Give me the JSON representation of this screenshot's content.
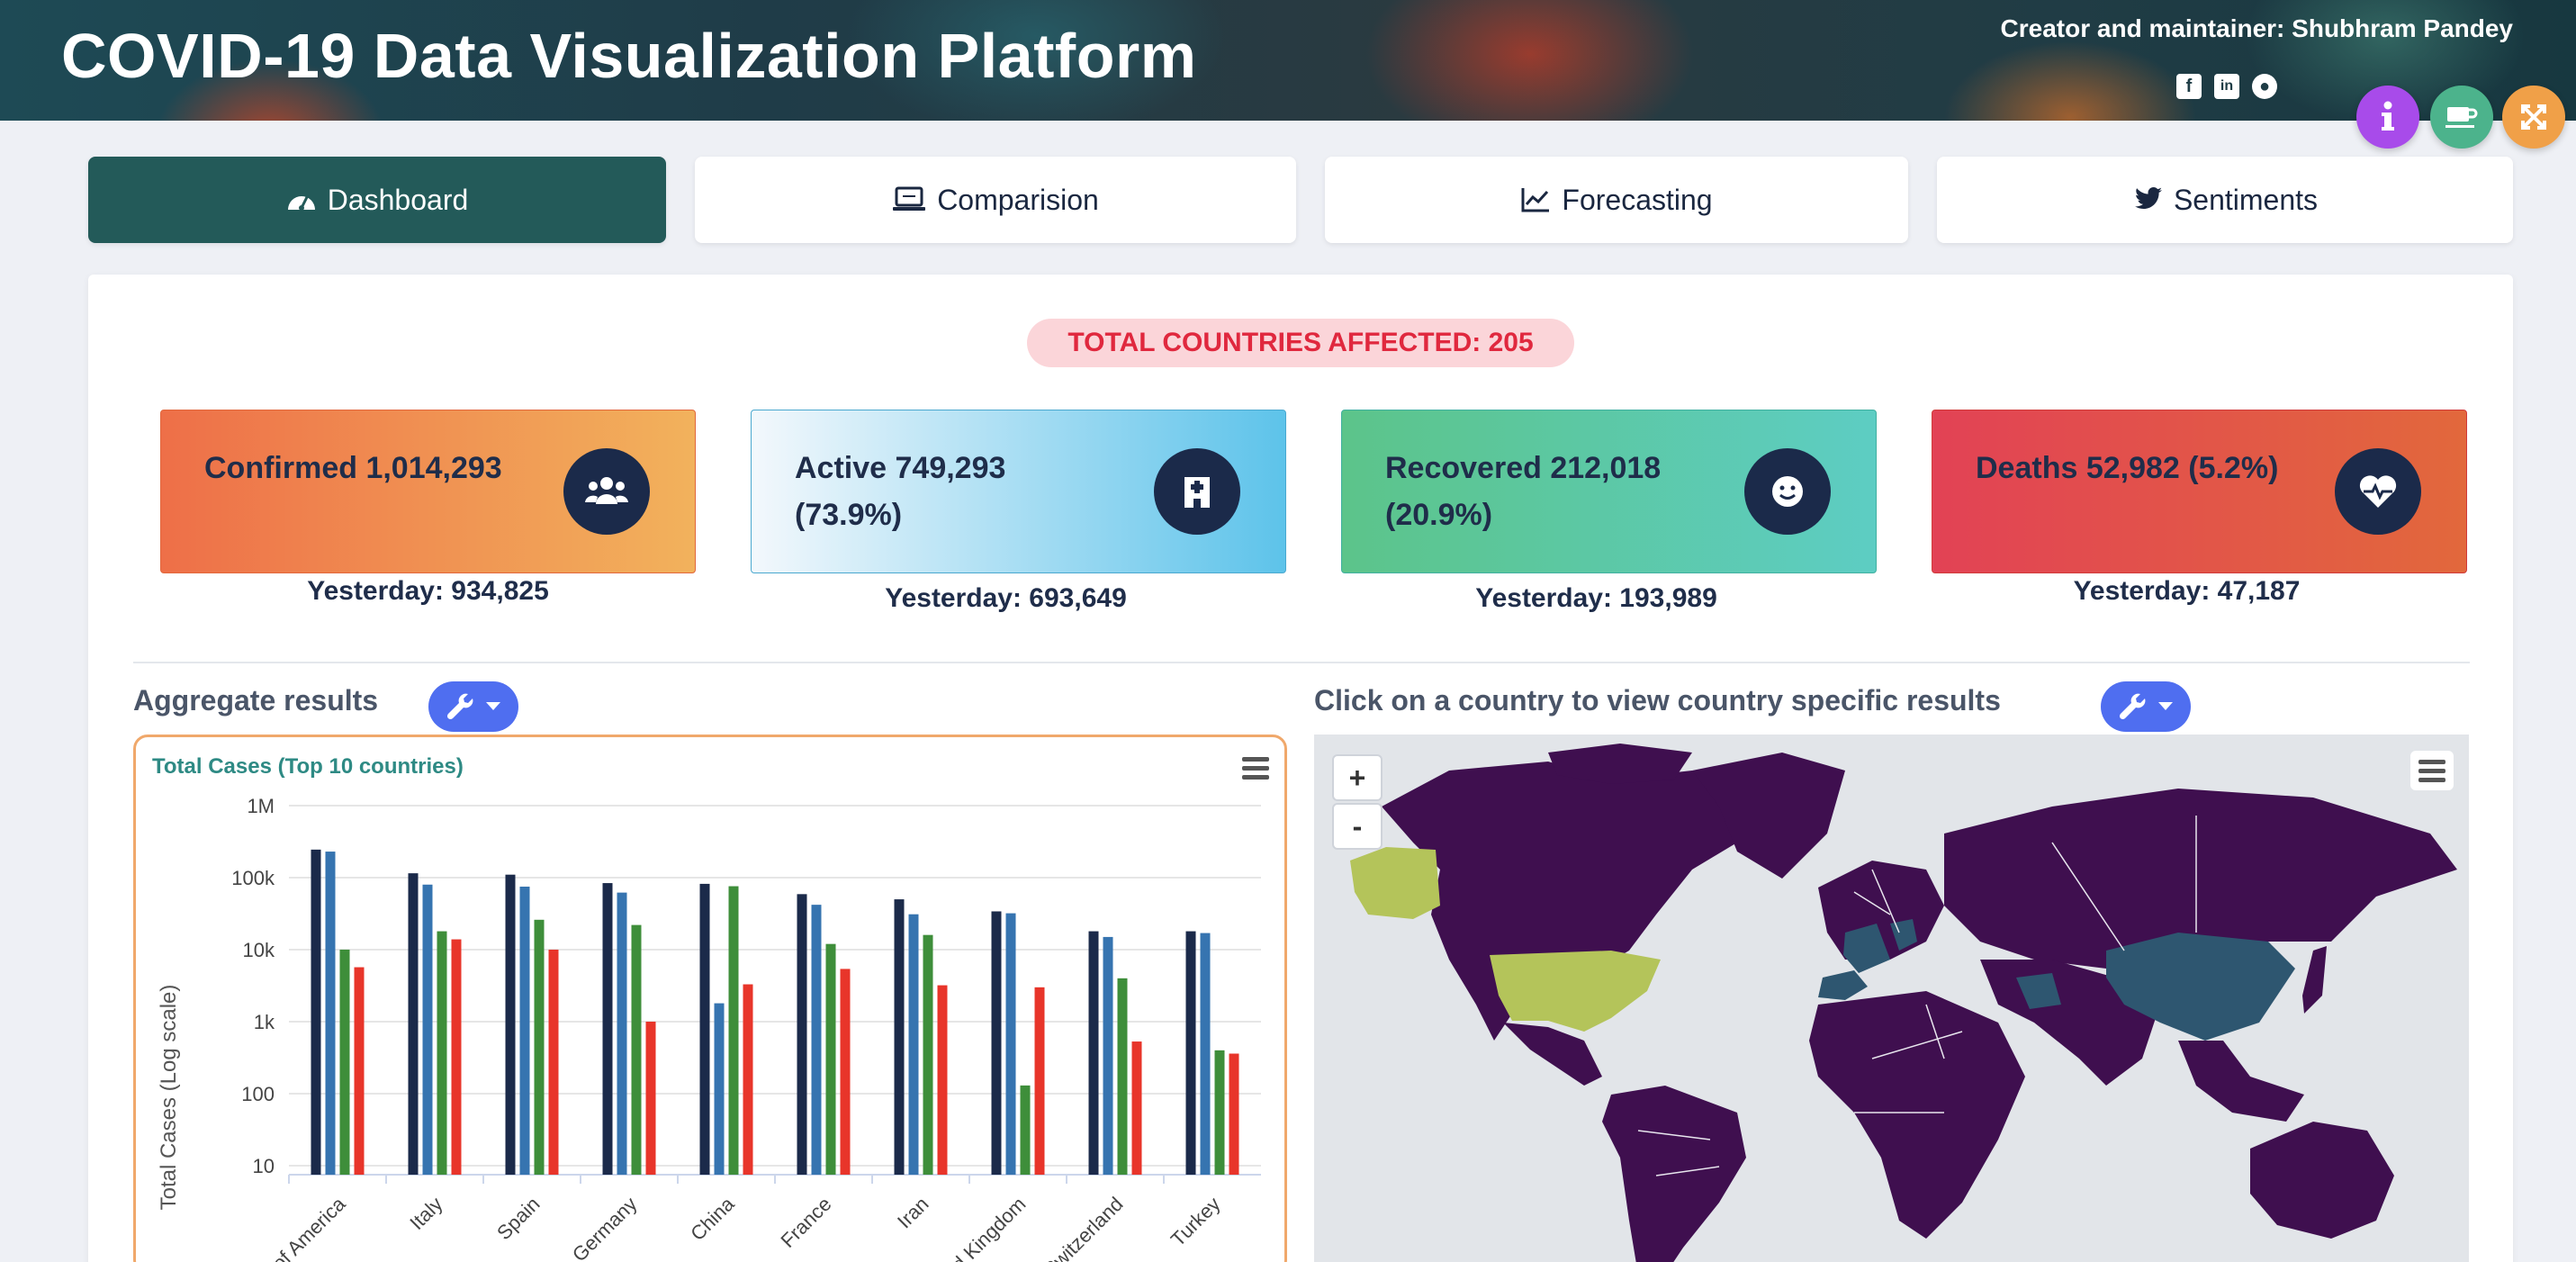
{
  "header": {
    "title": "COVID-19 Data Visualization Platform",
    "creator": "Creator and maintainer: Shubhram Pandey",
    "social": [
      "facebook-icon",
      "linkedin-icon",
      "github-icon"
    ]
  },
  "fabs": [
    {
      "name": "info-icon",
      "color": "#a84bea"
    },
    {
      "name": "coffee-icon",
      "color": "#4cb38c"
    },
    {
      "name": "expand-icon",
      "color": "#f0a048"
    }
  ],
  "tabs": [
    {
      "label": "Dashboard",
      "icon": "speedometer-icon",
      "active": true
    },
    {
      "label": "Comparision",
      "icon": "laptop-icon",
      "active": false
    },
    {
      "label": "Forecasting",
      "icon": "line-chart-icon",
      "active": false
    },
    {
      "label": "Sentiments",
      "icon": "twitter-icon",
      "active": false
    }
  ],
  "summary": {
    "countries": "TOTAL COUNTRIES AFFECTED: 205",
    "cards": [
      {
        "label": "Confirmed 1,014,293",
        "icon": "users-icon",
        "yesterday": "Yesterday: 934,825"
      },
      {
        "label": "Active 749,293 (73.9%)",
        "icon": "hospital-icon",
        "yesterday": "Yesterday: 693,649"
      },
      {
        "label": "Recovered 212,018 (20.9%)",
        "icon": "smile-icon",
        "yesterday": "Yesterday: 193,989"
      },
      {
        "label": "Deaths 52,982 (5.2%)",
        "icon": "heartbeat-icon",
        "yesterday": "Yesterday: 47,187"
      }
    ]
  },
  "aggregate": {
    "title": "Aggregate results"
  },
  "map": {
    "title": "Click on a country to view country specific results",
    "zoom_in": "+",
    "zoom_out": "-"
  },
  "chart_data": {
    "type": "bar",
    "title": "Total Cases (Top 10 countries)",
    "ylabel": "Total Cases (Log scale)",
    "xlabel": "",
    "scale": "log",
    "ylim": [
      10,
      1000000
    ],
    "yticks": [
      "10",
      "100",
      "1k",
      "10k",
      "100k",
      "1M"
    ],
    "categories": [
      "of America",
      "Italy",
      "Spain",
      "Germany",
      "China",
      "France",
      "Iran",
      "d Kingdom",
      "Switzerland",
      "Turkey"
    ],
    "series": [
      {
        "color": "#1b2a4a",
        "values": [
          245000,
          115000,
          110000,
          84000,
          82000,
          59000,
          50000,
          34000,
          18000,
          18000
        ]
      },
      {
        "color": "#3674b0",
        "values": [
          230000,
          80000,
          75000,
          62000,
          1800,
          42000,
          31000,
          32000,
          15000,
          17000
        ]
      },
      {
        "color": "#3e8e3a",
        "values": [
          10000,
          18000,
          26000,
          22000,
          76000,
          12000,
          16000,
          130,
          4000,
          400
        ]
      },
      {
        "color": "#e8352a",
        "values": [
          5700,
          13900,
          10000,
          1000,
          3300,
          5400,
          3200,
          3000,
          530,
          360
        ]
      }
    ]
  }
}
